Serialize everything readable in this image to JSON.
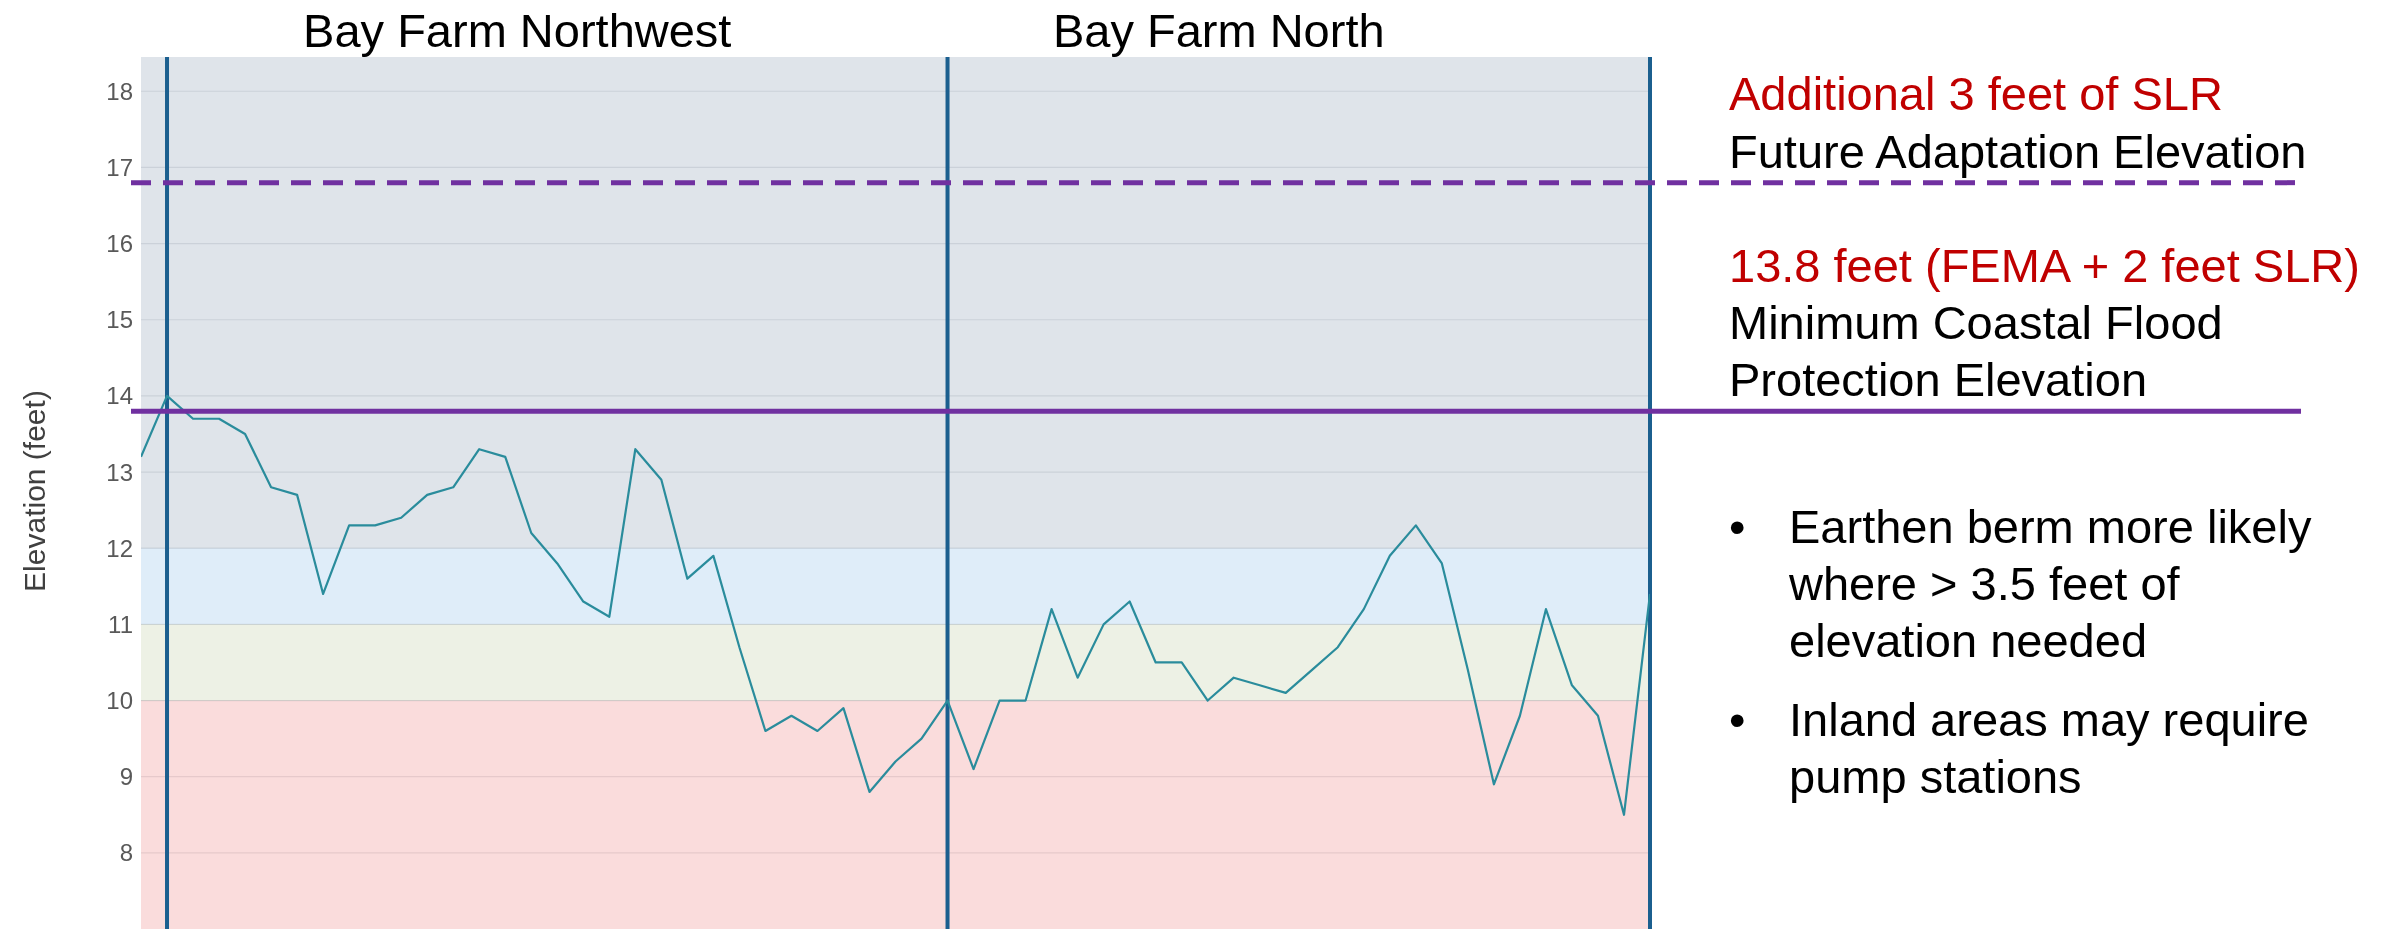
{
  "chart_data": {
    "type": "line",
    "ylabel": "Elevation (feet)",
    "categories": [
      null,
      null,
      null,
      null,
      null,
      null,
      null,
      null,
      null,
      null,
      null,
      null,
      null,
      null,
      null,
      null,
      null,
      null,
      null,
      null,
      null,
      null,
      null,
      null,
      null,
      null,
      null,
      null,
      null,
      null,
      null,
      null,
      null,
      null,
      null,
      null,
      null,
      null,
      null,
      null,
      null,
      null,
      null,
      null,
      null,
      null,
      null,
      null,
      null,
      null,
      null,
      null,
      null,
      null,
      null,
      null,
      null,
      null,
      null
    ],
    "ylim": [
      7,
      18.45
    ],
    "yticks": [
      8,
      9,
      10,
      11,
      12,
      13,
      14,
      15,
      16,
      17,
      18
    ],
    "grid": "y",
    "marker": "none",
    "series": [
      {
        "color": "#2a8c9c",
        "values": [
          13.2,
          14.0,
          13.7,
          13.7,
          13.5,
          12.8,
          12.7,
          11.4,
          12.3,
          12.3,
          12.4,
          12.7,
          12.8,
          13.3,
          13.2,
          12.2,
          11.8,
          11.3,
          11.1,
          13.3,
          12.9,
          11.6,
          11.9,
          10.7,
          9.6,
          9.8,
          9.6,
          9.9,
          8.8,
          9.2,
          9.5,
          10.0,
          9.1,
          10.0,
          10.0,
          11.2,
          10.3,
          11.0,
          11.3,
          10.5,
          10.5,
          10.0,
          10.3,
          10.2,
          10.1,
          10.4,
          10.7,
          11.2,
          11.9,
          12.3,
          11.8,
          10.4,
          8.9,
          9.8,
          11.2,
          10.2,
          9.8,
          8.5,
          11.4
        ]
      }
    ],
    "bands": [
      {
        "axis": "y",
        "from": 7,
        "to": 10,
        "color": "#f9d3d3"
      },
      {
        "axis": "y",
        "from": 10,
        "to": 11,
        "color": "#e9eedf"
      },
      {
        "axis": "y",
        "from": 11,
        "to": 12,
        "color": "#d7e8f8"
      },
      {
        "axis": "y",
        "from": 12,
        "to": 18.45,
        "color": "#d7dde5"
      }
    ],
    "ref_lines": [
      {
        "axis": "y",
        "value": 16.8,
        "label": "Future Adaptation Elevation",
        "color": "#7030a0",
        "line_style": "dashed"
      },
      {
        "axis": "y",
        "value": 13.8,
        "label": "Minimum Coastal Flood Protection Elevation",
        "color": "#7030a0",
        "line_style": "solid"
      },
      {
        "axis": "x",
        "color": "#1b5f8f",
        "line_style": "solid"
      },
      {
        "axis": "x",
        "color": "#1b5f8f",
        "line_style": "solid"
      },
      {
        "axis": "x",
        "color": "#1b5f8f",
        "line_style": "solid"
      }
    ],
    "annotations": [
      "Bay Farm Northwest",
      "Bay Farm North",
      "Additional 3 feet of SLR",
      "13.8 feet (FEMA + 2 feet SLR)",
      "• Earthen berm more likely where > 3.5 feet of elevation needed",
      "• Inland areas may require pump stations"
    ]
  }
}
